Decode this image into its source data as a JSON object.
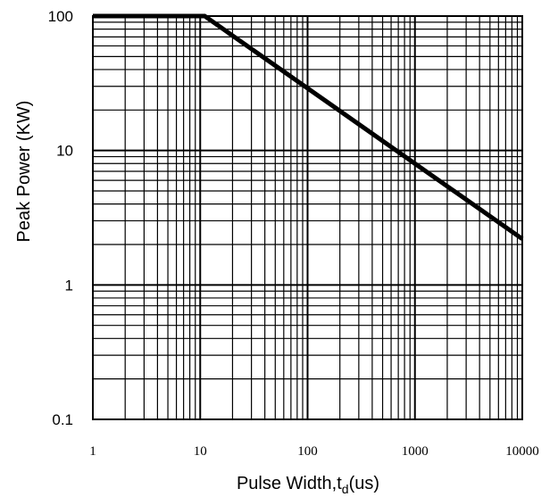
{
  "chart_data": {
    "type": "line",
    "title": "",
    "xlabel": {
      "main": "Pulse Width,t",
      "sub": "d",
      "suffix": "(us)"
    },
    "ylabel": "Peak Power (KW)",
    "xscale": "log",
    "yscale": "log",
    "xlim": [
      1,
      10000
    ],
    "ylim": [
      0.1,
      100
    ],
    "grid": true,
    "x_tick_labels": [
      "1",
      "10",
      "100",
      "1000",
      "10000"
    ],
    "y_tick_labels": [
      "0.1",
      "1",
      "10",
      "100"
    ],
    "series": [
      {
        "x": [
          1,
          11,
          10000
        ],
        "y": [
          100,
          100,
          2.2
        ]
      }
    ],
    "colors": {
      "line": "#000000",
      "grid": "#000000",
      "background": "#ffffff"
    }
  }
}
